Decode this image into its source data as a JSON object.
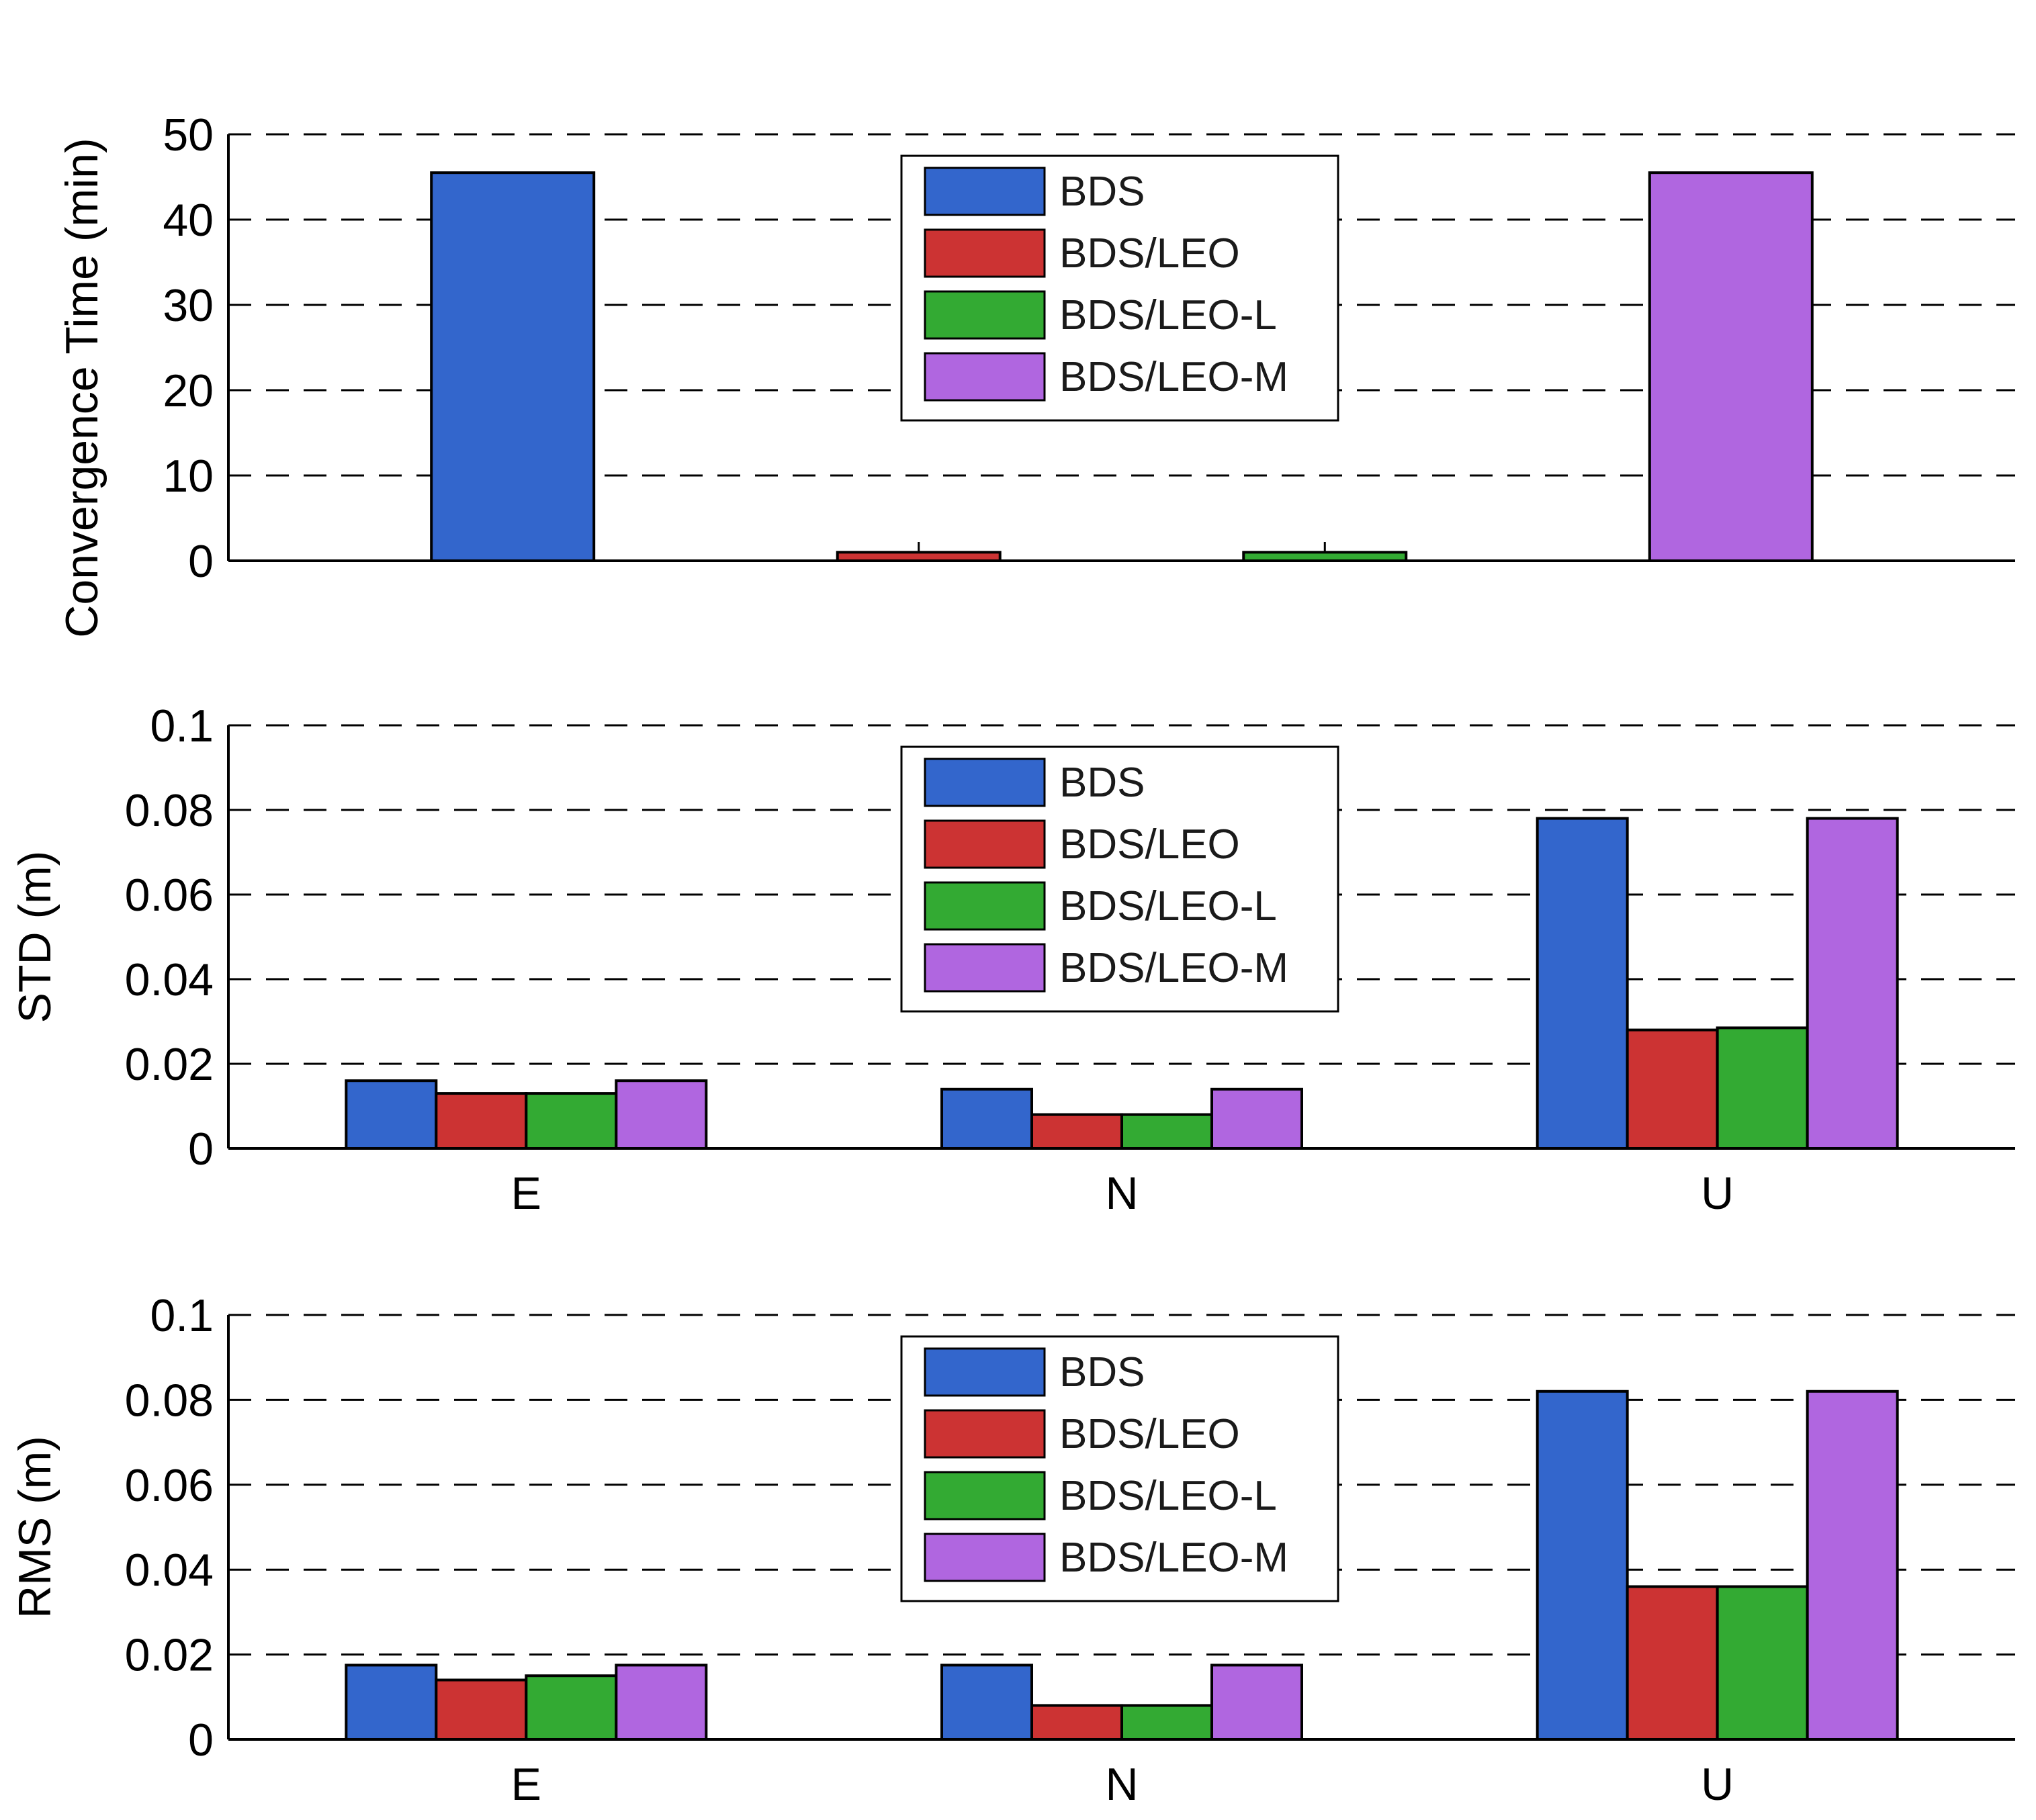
{
  "series_names": [
    "BDS",
    "BDS/LEO",
    "BDS/LEO-L",
    "BDS/LEO-M"
  ],
  "series_colors": [
    "#3366cc",
    "#cc3333",
    "#33aa33",
    "#b066e0"
  ],
  "chart_data": [
    {
      "type": "bar",
      "ylabel": "Convergence Time (min)",
      "ylim": [
        0,
        50
      ],
      "yticks": [
        "0",
        "10",
        "20",
        "30",
        "40",
        "50"
      ],
      "grid": true,
      "legend_position": "top-center",
      "categories": [
        "BDS",
        "BDS/LEO",
        "BDS/LEO-L",
        "BDS/LEO-M"
      ],
      "category_labels_shown": false,
      "values": [
        45.5,
        1.0,
        1.0,
        45.5
      ]
    },
    {
      "type": "bar",
      "ylabel": "STD (m)",
      "ylim": [
        0,
        0.1
      ],
      "yticks": [
        "0",
        "0.02",
        "0.04",
        "0.06",
        "0.08",
        "0.1"
      ],
      "grid": true,
      "legend_position": "top-center",
      "categories": [
        "E",
        "N",
        "U"
      ],
      "category_labels_shown": true,
      "series": [
        {
          "name": "BDS",
          "values": [
            0.016,
            0.014,
            0.078
          ]
        },
        {
          "name": "BDS/LEO",
          "values": [
            0.013,
            0.008,
            0.028
          ]
        },
        {
          "name": "BDS/LEO-L",
          "values": [
            0.013,
            0.008,
            0.0285
          ]
        },
        {
          "name": "BDS/LEO-M",
          "values": [
            0.016,
            0.014,
            0.078
          ]
        }
      ]
    },
    {
      "type": "bar",
      "ylabel": "RMS (m)",
      "ylim": [
        0,
        0.1
      ],
      "yticks": [
        "0",
        "0.02",
        "0.04",
        "0.06",
        "0.08",
        "0.1"
      ],
      "grid": true,
      "legend_position": "top-center",
      "categories": [
        "E",
        "N",
        "U"
      ],
      "category_labels_shown": true,
      "series": [
        {
          "name": "BDS",
          "values": [
            0.0175,
            0.0175,
            0.082
          ]
        },
        {
          "name": "BDS/LEO",
          "values": [
            0.014,
            0.008,
            0.036
          ]
        },
        {
          "name": "BDS/LEO-L",
          "values": [
            0.015,
            0.008,
            0.036
          ]
        },
        {
          "name": "BDS/LEO-M",
          "values": [
            0.0175,
            0.0175,
            0.082
          ]
        }
      ]
    }
  ]
}
